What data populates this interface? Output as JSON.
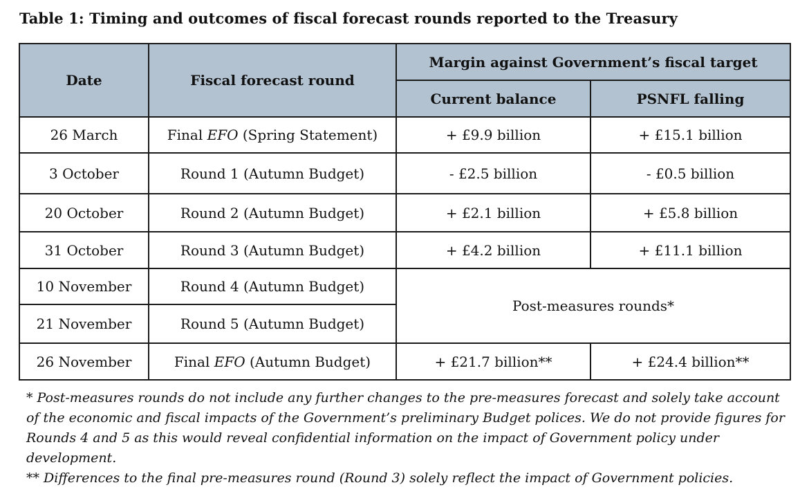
{
  "title": "Table 1: Timing and outcomes of fiscal forecast rounds reported to the Treasury",
  "headers": {
    "date": "Date",
    "round": "Fiscal forecast round",
    "margin": "Margin against Government’s fiscal target",
    "current_balance": "Current balance",
    "psnfl": "PSNFL falling"
  },
  "rows": [
    {
      "date": "26 March",
      "round_prefix": "Final ",
      "round_em": "EFO",
      "round_suffix": " (Spring Statement)",
      "current_balance": "+ £9.9 billion",
      "psnfl": "+ £15.1 billion"
    },
    {
      "date": "3 October",
      "round": "Round 1 (Autumn Budget)",
      "current_balance": "- £2.5 billion",
      "psnfl": "- £0.5 billion"
    },
    {
      "date": "20 October",
      "round": "Round 2 (Autumn Budget)",
      "current_balance": "+ £2.1 billion",
      "psnfl": "+ £5.8 billion"
    },
    {
      "date": "31 October",
      "round": "Round 3 (Autumn Budget)",
      "current_balance": "+ £4.2 billion",
      "psnfl": "+ £11.1 billion"
    },
    {
      "date": "10 November",
      "round": "Round 4 (Autumn Budget)"
    },
    {
      "date": "21 November",
      "round": "Round 5 (Autumn Budget)"
    },
    {
      "date": "26 November",
      "round_prefix": "Final ",
      "round_em": "EFO",
      "round_suffix": " (Autumn Budget)",
      "current_balance": "+ £21.7 billion**",
      "psnfl": "+ £24.4 billion**"
    }
  ],
  "post_measures_label": "Post-measures rounds*",
  "notes": {
    "note1": "* Post-measures rounds do not include any further changes to the pre-measures forecast and solely take account of the economic and fiscal impacts of the Government’s preliminary Budget polices. We do not provide figures for Rounds 4 and 5 as this would reveal confidential information on the impact of Government policy under development.",
    "note2": "** Differences to the final pre-measures round (Round 3) solely reflect the impact of Government policies."
  }
}
